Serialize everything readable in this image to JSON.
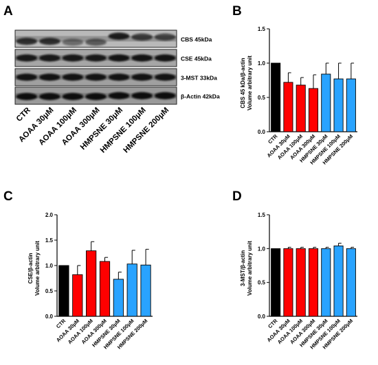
{
  "panels": {
    "A": "A",
    "B": "B",
    "C": "C",
    "D": "D"
  },
  "blot": {
    "bands": [
      "CBS 45kDa",
      "CSE 45kDa",
      "3-MST 33kDa",
      "β-Actin 42kDa"
    ],
    "lanes": [
      "CTR",
      "AOAA 30μM",
      "AOAA 100μM",
      "AOAA 300μM",
      "HMPSNE 30μM",
      "HMPSNE 100μM",
      "HMPSNE 200μM"
    ]
  },
  "colors": {
    "control": "#000000",
    "aoaa": "#ff0000",
    "hmpsne": "#29a3ff"
  },
  "chart_data": [
    {
      "panel": "B",
      "type": "bar",
      "categories": [
        "CTR",
        "AOAA 30μM",
        "AOAA 100μM",
        "AOAA 300μM",
        "HMPSNE 30μM",
        "HMPSNE 100μM",
        "HMPSNE 200μM"
      ],
      "values": [
        1.0,
        0.72,
        0.68,
        0.63,
        0.84,
        0.77,
        0.77
      ],
      "errors": [
        0,
        0.14,
        0.11,
        0.2,
        0.16,
        0.23,
        0.23
      ],
      "ylabel": [
        "CBS 45 kDa/β-actin",
        "Volume arbitrary unit"
      ],
      "ylim": [
        0,
        1.5
      ],
      "yticks": [
        "0.0",
        "0.5",
        "1.0",
        "1.5"
      ],
      "grid": false
    },
    {
      "panel": "C",
      "type": "bar",
      "categories": [
        "CTR",
        "AOAA 30μM",
        "AOAA 100μM",
        "AOAA 300μM",
        "HMPSNE 30μM",
        "HMPSNE 100μM",
        "HMPSNE 200μM"
      ],
      "values": [
        1.0,
        0.82,
        1.29,
        1.08,
        0.73,
        1.03,
        1.01
      ],
      "errors": [
        0,
        0.18,
        0.18,
        0.08,
        0.14,
        0.27,
        0.31
      ],
      "ylabel": [
        "CSE/β-actin",
        "Volume arbitrary unit"
      ],
      "ylim": [
        0,
        2.0
      ],
      "yticks": [
        "0.0",
        "0.5",
        "1.0",
        "1.5",
        "2.0"
      ],
      "grid": false
    },
    {
      "panel": "D",
      "type": "bar",
      "categories": [
        "CTR",
        "AOAA 30μM",
        "AOAA 100μM",
        "AOAA 300μM",
        "HMPSNE 30μM",
        "HMPSNE 100μM",
        "HMPSNE 200μM"
      ],
      "values": [
        1.0,
        1.0,
        1.0,
        1.0,
        1.0,
        1.04,
        1.0
      ],
      "errors": [
        0,
        0.02,
        0.02,
        0.02,
        0.02,
        0.04,
        0.02
      ],
      "ylabel": [
        "3-MST/β-actin",
        "Volume arbitrary unit"
      ],
      "ylim": [
        0,
        1.5
      ],
      "yticks": [
        "0.0",
        "0.5",
        "1.0",
        "1.5"
      ],
      "grid": false
    }
  ]
}
